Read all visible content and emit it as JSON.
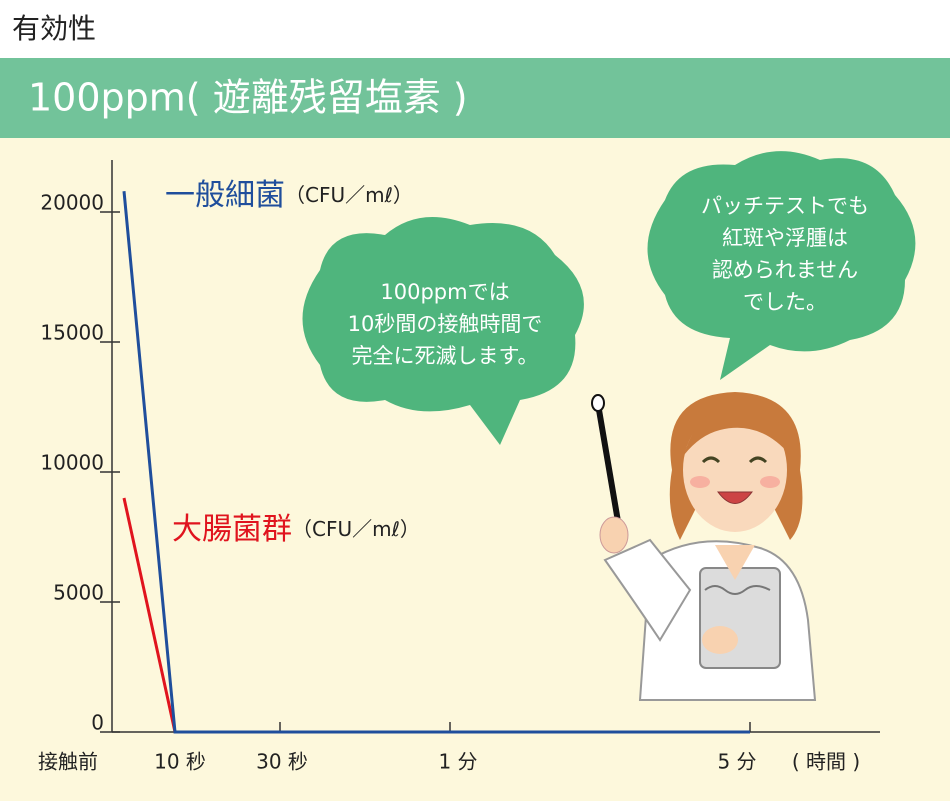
{
  "chart_data": {
    "type": "line",
    "title": "有効性",
    "subtitle": "100ppm( 遊離残留塩素 )",
    "categories": [
      "接触前",
      "10 秒",
      "30 秒",
      "1 分",
      "5 分"
    ],
    "x_label": "( 時間 )",
    "series_unit": "（CFU／mℓ）",
    "series": [
      {
        "name": "一般細菌",
        "color": "#1f4e9c",
        "values": [
          20800,
          0,
          0,
          0,
          0
        ]
      },
      {
        "name": "大腸菌群",
        "color": "#e0141e",
        "values": [
          9000,
          0,
          0,
          0,
          0
        ]
      }
    ],
    "ylim": [
      0,
      22000
    ],
    "yticks": [
      0,
      5000,
      10000,
      15000,
      20000
    ],
    "annotations": [
      [
        "100ppmでは",
        "10秒間の接触時間で",
        "完全に死滅します。"
      ],
      [
        "パッチテストでも",
        "紅斑や浮腫は",
        "認められません",
        "でした。"
      ]
    ]
  }
}
